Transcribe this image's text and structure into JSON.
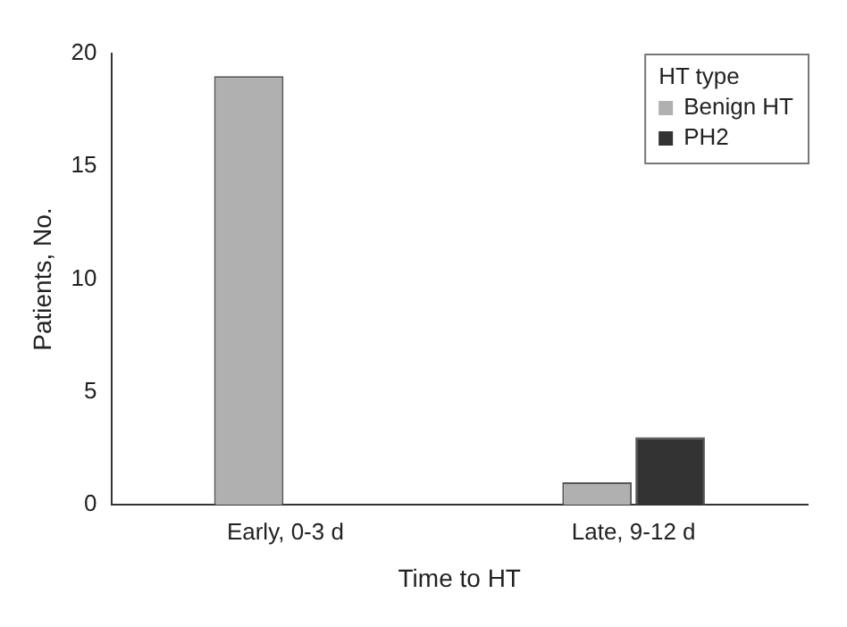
{
  "chart_data": {
    "type": "bar",
    "xlabel": "Time to HT",
    "ylabel": "Patients, No.",
    "legend_title": "HT type",
    "categories": [
      "Early, 0-3 d",
      "Late, 9-12 d"
    ],
    "series": [
      {
        "name": "Benign HT",
        "color": "#b0b0b0",
        "values": [
          19,
          1
        ]
      },
      {
        "name": "PH2",
        "color": "#333333",
        "values": [
          0,
          3
        ]
      }
    ],
    "ylim": [
      0,
      20
    ],
    "yticks": [
      0,
      5,
      10,
      15,
      20
    ],
    "grid": false,
    "legend": "top right"
  }
}
